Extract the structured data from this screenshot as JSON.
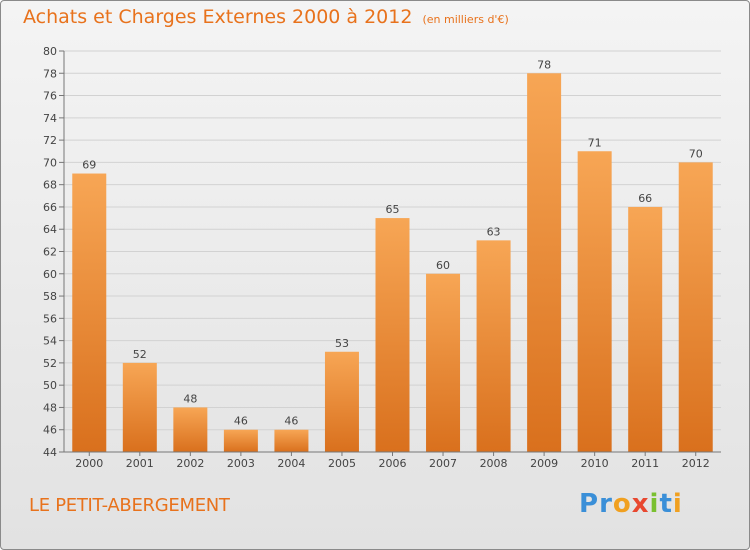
{
  "title": "Achats et Charges Externes 2000 à 2012",
  "unit": "(en milliers d'€)",
  "commune": "LE PETIT-ABERGEMENT",
  "logo": {
    "text": "Proxiti",
    "letters": [
      {
        "c": "P",
        "color": "#3a8fd8"
      },
      {
        "c": "r",
        "color": "#3a8fd8"
      },
      {
        "c": "o",
        "color": "#f0a020"
      },
      {
        "c": "x",
        "color": "#e84830"
      },
      {
        "c": "i",
        "color": "#7ac030"
      },
      {
        "c": "t",
        "color": "#3a8fd8"
      },
      {
        "c": "i",
        "color": "#f0a020"
      }
    ]
  },
  "colors": {
    "bar_top": "#f7a655",
    "bar_bottom": "#d9701d",
    "text": "#e8721c"
  },
  "chart_data": {
    "type": "bar",
    "categories": [
      "2000",
      "2001",
      "2002",
      "2003",
      "2004",
      "2005",
      "2006",
      "2007",
      "2008",
      "2009",
      "2010",
      "2011",
      "2012"
    ],
    "values": [
      69,
      52,
      48,
      46,
      46,
      53,
      65,
      60,
      63,
      78,
      71,
      66,
      70
    ],
    "ylim": [
      44,
      80
    ],
    "ytick_step": 2,
    "grid": true
  }
}
